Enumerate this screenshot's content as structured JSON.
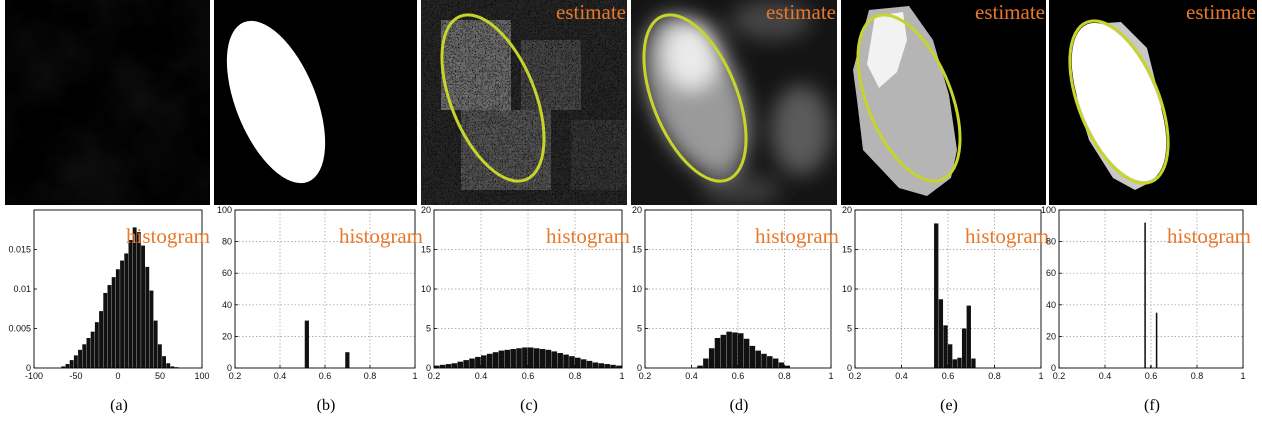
{
  "colors": {
    "label": "#e8782a",
    "ellipse": "#c7d42a",
    "bar": "#111111",
    "grid": "#999999"
  },
  "panels": [
    {
      "caption": "(a)",
      "image_label": "",
      "plot_label": "histogram"
    },
    {
      "caption": "(b)",
      "image_label": "",
      "plot_label": "histogram"
    },
    {
      "caption": "(c)",
      "image_label": "estimate",
      "plot_label": "histogram"
    },
    {
      "caption": "(d)",
      "image_label": "estimate",
      "plot_label": "histogram"
    },
    {
      "caption": "(e)",
      "image_label": "estimate",
      "plot_label": "histogram"
    },
    {
      "caption": "(f)",
      "image_label": "estimate",
      "plot_label": "histogram"
    }
  ],
  "chart_data": [
    {
      "type": "bar",
      "title": "histogram",
      "xlim": [
        -100,
        100
      ],
      "ylim": [
        0,
        0.02
      ],
      "xticks": [
        -100,
        -50,
        0,
        50,
        100
      ],
      "xtick_labels": [
        "-100",
        "-50",
        "0",
        "50",
        "100"
      ],
      "yticks": [
        0,
        0.005,
        0.01,
        0.015
      ],
      "ytick_labels": [
        "0",
        "0.005",
        "0.01",
        "0.015"
      ],
      "grid": false,
      "bin_width": 5,
      "x": [
        -65,
        -60,
        -55,
        -50,
        -45,
        -40,
        -35,
        -30,
        -25,
        -20,
        -15,
        -10,
        -5,
        0,
        5,
        10,
        15,
        20,
        25,
        30,
        35,
        40,
        45,
        50,
        55,
        60,
        65,
        70
      ],
      "values": [
        0.0002,
        0.0005,
        0.001,
        0.0016,
        0.0023,
        0.003,
        0.0038,
        0.0046,
        0.0058,
        0.0072,
        0.0095,
        0.0105,
        0.0115,
        0.0125,
        0.0136,
        0.0145,
        0.0162,
        0.0178,
        0.0172,
        0.0155,
        0.0128,
        0.0098,
        0.006,
        0.003,
        0.0015,
        0.0006,
        0.0002,
        0.0001
      ]
    },
    {
      "type": "bar",
      "title": "histogram",
      "xlim": [
        0.2,
        1
      ],
      "ylim": [
        0,
        100
      ],
      "xticks": [
        0.2,
        0.4,
        0.6,
        0.8,
        1
      ],
      "xtick_labels": [
        "0.2",
        "0.4",
        "0.6",
        "0.8",
        "1"
      ],
      "yticks": [
        0,
        20,
        40,
        60,
        80,
        100
      ],
      "ytick_labels": [
        "0",
        "20",
        "40",
        "60",
        "80",
        "100"
      ],
      "grid": true,
      "bin_width": 0.02,
      "x": [
        0.52,
        0.7
      ],
      "values": [
        30,
        10
      ]
    },
    {
      "type": "bar",
      "title": "histogram",
      "xlim": [
        0.2,
        1
      ],
      "ylim": [
        0,
        20
      ],
      "xticks": [
        0.2,
        0.4,
        0.6,
        0.8,
        1
      ],
      "xtick_labels": [
        "0.2",
        "0.4",
        "0.6",
        "0.8",
        "1"
      ],
      "yticks": [
        0,
        5,
        10,
        15,
        20
      ],
      "ytick_labels": [
        "0",
        "5",
        "10",
        "15",
        "20"
      ],
      "grid": true,
      "bin_width": 0.025,
      "x": [
        0.2125,
        0.2375,
        0.2625,
        0.2875,
        0.3125,
        0.3375,
        0.3625,
        0.3875,
        0.4125,
        0.4375,
        0.4625,
        0.4875,
        0.5125,
        0.5375,
        0.5625,
        0.5875,
        0.6125,
        0.6375,
        0.6625,
        0.6875,
        0.7125,
        0.7375,
        0.7625,
        0.7875,
        0.8125,
        0.8375,
        0.8625,
        0.8875,
        0.9125,
        0.9375,
        0.9625,
        0.9875
      ],
      "values": [
        0.3,
        0.4,
        0.5,
        0.6,
        0.8,
        1.0,
        1.2,
        1.4,
        1.6,
        1.8,
        2.0,
        2.2,
        2.3,
        2.4,
        2.5,
        2.6,
        2.6,
        2.5,
        2.4,
        2.3,
        2.1,
        1.9,
        1.7,
        1.5,
        1.3,
        1.1,
        0.9,
        0.7,
        0.6,
        0.5,
        0.4,
        0.3
      ]
    },
    {
      "type": "bar",
      "title": "histogram",
      "xlim": [
        0.2,
        1
      ],
      "ylim": [
        0,
        20
      ],
      "xticks": [
        0.2,
        0.4,
        0.6,
        0.8,
        1
      ],
      "xtick_labels": [
        "0.2",
        "0.4",
        "0.6",
        "0.8",
        "1"
      ],
      "yticks": [
        0,
        5,
        10,
        15,
        20
      ],
      "ytick_labels": [
        "0",
        "5",
        "10",
        "15",
        "20"
      ],
      "grid": true,
      "bin_width": 0.025,
      "x": [
        0.4375,
        0.4625,
        0.4875,
        0.5125,
        0.5375,
        0.5625,
        0.5875,
        0.6125,
        0.6375,
        0.6625,
        0.6875,
        0.7125,
        0.7375,
        0.7625,
        0.7875,
        0.8125
      ],
      "values": [
        0.3,
        1.2,
        2.5,
        3.8,
        4.2,
        4.6,
        4.5,
        4.4,
        3.7,
        2.8,
        2.2,
        1.8,
        1.5,
        1.2,
        0.7,
        0.3
      ]
    },
    {
      "type": "bar",
      "title": "histogram",
      "xlim": [
        0.2,
        1
      ],
      "ylim": [
        0,
        20
      ],
      "xticks": [
        0.2,
        0.4,
        0.6,
        0.8,
        1
      ],
      "xtick_labels": [
        "0.2",
        "0.4",
        "0.6",
        "0.8",
        "1"
      ],
      "yticks": [
        0,
        5,
        10,
        15,
        20
      ],
      "ytick_labels": [
        "0",
        "5",
        "10",
        "15",
        "20"
      ],
      "grid": true,
      "bin_width": 0.02,
      "x": [
        0.55,
        0.57,
        0.59,
        0.61,
        0.63,
        0.65,
        0.67,
        0.69,
        0.71
      ],
      "values": [
        18.3,
        8.7,
        5.4,
        3.0,
        1.1,
        1.3,
        5.0,
        7.9,
        1.2
      ]
    },
    {
      "type": "bar",
      "title": "histogram",
      "xlim": [
        0.2,
        1
      ],
      "ylim": [
        0,
        100
      ],
      "xticks": [
        0.2,
        0.4,
        0.6,
        0.8,
        1
      ],
      "xtick_labels": [
        "0.2",
        "0.4",
        "0.6",
        "0.8",
        "1"
      ],
      "yticks": [
        0,
        20,
        40,
        60,
        80,
        100
      ],
      "ytick_labels": [
        "0",
        "20",
        "40",
        "60",
        "80",
        "100"
      ],
      "grid": true,
      "bin_width": 0.008,
      "x": [
        0.575,
        0.6,
        0.625
      ],
      "values": [
        92,
        1.5,
        35
      ]
    }
  ]
}
